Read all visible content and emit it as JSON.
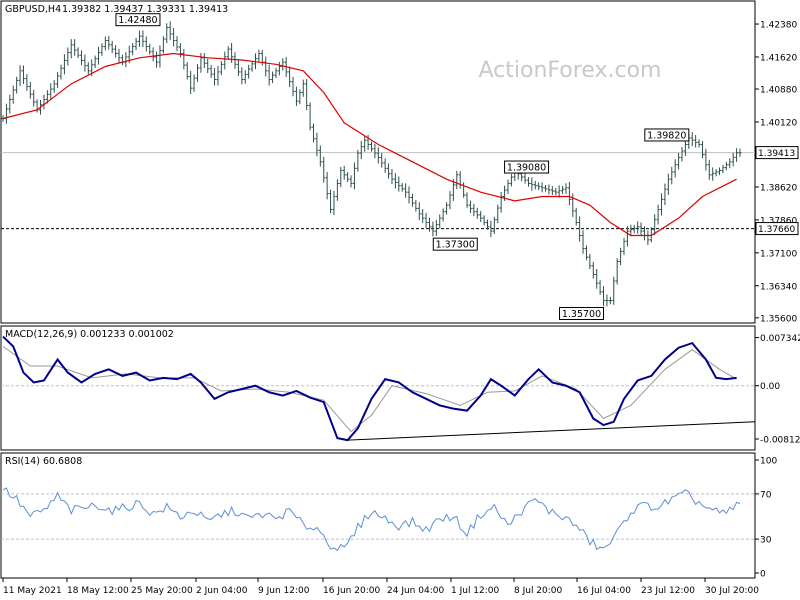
{
  "header": {
    "symbol_tf": "GBPUSD,H4",
    "ohlc": "1.39382 1.39437 1.39331 1.39413"
  },
  "watermark": "ActionForex.com",
  "colors": {
    "candle": "#2f4f4f",
    "ma": "#dd0000",
    "macd": "#00008b",
    "signal": "#999999",
    "rsi": "#5b8fd6",
    "grid": "#c0c0c0",
    "level": "#000000"
  },
  "chart_data": [
    {
      "type": "line",
      "title": "GBPUSD,H4",
      "x_labels": [
        "11 May 2021",
        "18 May 12:00",
        "25 May 20:00",
        "2 Jun 04:00",
        "9 Jun 12:00",
        "16 Jun 20:00",
        "24 Jun 04:00",
        "1 Jul 12:00",
        "8 Jul 20:00",
        "16 Jul 04:00",
        "23 Jul 12:00",
        "30 Jul 20:00"
      ],
      "y_ticks": [
        "1.42380",
        "1.41620",
        "1.40880",
        "1.40120",
        "1.38620",
        "1.37860",
        "1.37100",
        "1.36340",
        "1.35600"
      ],
      "ylim": [
        1.3555,
        1.4275
      ],
      "current_price": "1.39413",
      "current_value": 1.39413,
      "level_label": "1.37660",
      "level_value": 1.3766,
      "price_series": [
        {
          "x": 0,
          "y": 1.402
        },
        {
          "x": 5,
          "y": 1.413
        },
        {
          "x": 10,
          "y": 1.404
        },
        {
          "x": 15,
          "y": 1.41
        },
        {
          "x": 20,
          "y": 1.419
        },
        {
          "x": 25,
          "y": 1.413
        },
        {
          "x": 30,
          "y": 1.42
        },
        {
          "x": 35,
          "y": 1.415
        },
        {
          "x": 40,
          "y": 1.421
        },
        {
          "x": 45,
          "y": 1.415
        },
        {
          "x": 48,
          "y": 1.423
        },
        {
          "x": 52,
          "y": 1.417
        },
        {
          "x": 55,
          "y": 1.409
        },
        {
          "x": 58,
          "y": 1.416
        },
        {
          "x": 62,
          "y": 1.411
        },
        {
          "x": 66,
          "y": 1.418
        },
        {
          "x": 70,
          "y": 1.411
        },
        {
          "x": 75,
          "y": 1.417
        },
        {
          "x": 78,
          "y": 1.411
        },
        {
          "x": 82,
          "y": 1.415
        },
        {
          "x": 86,
          "y": 1.406
        },
        {
          "x": 88,
          "y": 1.41
        },
        {
          "x": 90,
          "y": 1.4
        },
        {
          "x": 93,
          "y": 1.392
        },
        {
          "x": 96,
          "y": 1.381
        },
        {
          "x": 99,
          "y": 1.39
        },
        {
          "x": 102,
          "y": 1.387
        },
        {
          "x": 104,
          "y": 1.394
        },
        {
          "x": 106,
          "y": 1.397
        },
        {
          "x": 110,
          "y": 1.393
        },
        {
          "x": 114,
          "y": 1.388
        },
        {
          "x": 118,
          "y": 1.385
        },
        {
          "x": 122,
          "y": 1.38
        },
        {
          "x": 126,
          "y": 1.376
        },
        {
          "x": 130,
          "y": 1.382
        },
        {
          "x": 133,
          "y": 1.389
        },
        {
          "x": 136,
          "y": 1.382
        },
        {
          "x": 140,
          "y": 1.379
        },
        {
          "x": 143,
          "y": 1.376
        },
        {
          "x": 146,
          "y": 1.384
        },
        {
          "x": 150,
          "y": 1.39
        },
        {
          "x": 154,
          "y": 1.387
        },
        {
          "x": 158,
          "y": 1.386
        },
        {
          "x": 162,
          "y": 1.385
        },
        {
          "x": 165,
          "y": 1.386
        },
        {
          "x": 168,
          "y": 1.378
        },
        {
          "x": 170,
          "y": 1.372
        },
        {
          "x": 173,
          "y": 1.366
        },
        {
          "x": 176,
          "y": 1.36
        },
        {
          "x": 178,
          "y": 1.36
        },
        {
          "x": 180,
          "y": 1.369
        },
        {
          "x": 183,
          "y": 1.376
        },
        {
          "x": 186,
          "y": 1.377
        },
        {
          "x": 189,
          "y": 1.374
        },
        {
          "x": 192,
          "y": 1.381
        },
        {
          "x": 195,
          "y": 1.388
        },
        {
          "x": 198,
          "y": 1.393
        },
        {
          "x": 201,
          "y": 1.3975
        },
        {
          "x": 204,
          "y": 1.396
        },
        {
          "x": 207,
          "y": 1.389
        },
        {
          "x": 210,
          "y": 1.39
        },
        {
          "x": 213,
          "y": 1.392
        },
        {
          "x": 215,
          "y": 1.3941
        }
      ],
      "ma_series": [
        {
          "x": 0,
          "y": 1.402
        },
        {
          "x": 10,
          "y": 1.404
        },
        {
          "x": 20,
          "y": 1.41
        },
        {
          "x": 30,
          "y": 1.414
        },
        {
          "x": 40,
          "y": 1.416
        },
        {
          "x": 50,
          "y": 1.417
        },
        {
          "x": 60,
          "y": 1.416
        },
        {
          "x": 70,
          "y": 1.4155
        },
        {
          "x": 80,
          "y": 1.4145
        },
        {
          "x": 88,
          "y": 1.413
        },
        {
          "x": 94,
          "y": 1.408
        },
        {
          "x": 100,
          "y": 1.401
        },
        {
          "x": 110,
          "y": 1.396
        },
        {
          "x": 120,
          "y": 1.392
        },
        {
          "x": 130,
          "y": 1.388
        },
        {
          "x": 140,
          "y": 1.385
        },
        {
          "x": 150,
          "y": 1.383
        },
        {
          "x": 158,
          "y": 1.384
        },
        {
          "x": 166,
          "y": 1.384
        },
        {
          "x": 172,
          "y": 1.382
        },
        {
          "x": 178,
          "y": 1.378
        },
        {
          "x": 184,
          "y": 1.375
        },
        {
          "x": 190,
          "y": 1.375
        },
        {
          "x": 198,
          "y": 1.379
        },
        {
          "x": 205,
          "y": 1.384
        },
        {
          "x": 215,
          "y": 1.388
        }
      ],
      "annotations": [
        {
          "label": "1.42480",
          "x": 46,
          "y": 1.4248,
          "side": "left"
        },
        {
          "label": "1.37300",
          "x": 139,
          "y": 1.373,
          "side": "left"
        },
        {
          "label": "1.39080",
          "x": 147,
          "y": 1.3908,
          "side": "right"
        },
        {
          "label": "1.35700",
          "x": 176,
          "y": 1.357,
          "side": "left"
        },
        {
          "label": "1.39820",
          "x": 201,
          "y": 1.3982,
          "side": "left"
        }
      ]
    },
    {
      "type": "line",
      "title": "MACD(12,26,9) 0.001233 0.001002",
      "y_ticks": [
        "0.007342",
        "0.00",
        "-0.008126"
      ],
      "ylim": [
        -0.0095,
        0.0085
      ],
      "macd": [
        {
          "x": 0,
          "y": 0.0075
        },
        {
          "x": 3,
          "y": 0.006
        },
        {
          "x": 6,
          "y": 0.002
        },
        {
          "x": 9,
          "y": 0.0005
        },
        {
          "x": 12,
          "y": 0.0008
        },
        {
          "x": 16,
          "y": 0.004
        },
        {
          "x": 19,
          "y": 0.002
        },
        {
          "x": 23,
          "y": 0.0005
        },
        {
          "x": 27,
          "y": 0.0018
        },
        {
          "x": 31,
          "y": 0.0025
        },
        {
          "x": 35,
          "y": 0.0015
        },
        {
          "x": 39,
          "y": 0.002
        },
        {
          "x": 43,
          "y": 0.0008
        },
        {
          "x": 47,
          "y": 0.0012
        },
        {
          "x": 51,
          "y": 0.001
        },
        {
          "x": 55,
          "y": 0.0018
        },
        {
          "x": 58,
          "y": 0.0005
        },
        {
          "x": 62,
          "y": -0.002
        },
        {
          "x": 66,
          "y": -0.001
        },
        {
          "x": 70,
          "y": -0.0005
        },
        {
          "x": 74,
          "y": 0.0
        },
        {
          "x": 78,
          "y": -0.001
        },
        {
          "x": 82,
          "y": -0.0015
        },
        {
          "x": 86,
          "y": -0.0008
        },
        {
          "x": 90,
          "y": -0.0018
        },
        {
          "x": 94,
          "y": -0.0025
        },
        {
          "x": 98,
          "y": -0.008
        },
        {
          "x": 101,
          "y": -0.0083
        },
        {
          "x": 104,
          "y": -0.0065
        },
        {
          "x": 108,
          "y": -0.002
        },
        {
          "x": 112,
          "y": 0.001
        },
        {
          "x": 116,
          "y": 0.0005
        },
        {
          "x": 120,
          "y": -0.001
        },
        {
          "x": 124,
          "y": -0.002
        },
        {
          "x": 128,
          "y": -0.003
        },
        {
          "x": 132,
          "y": -0.0035
        },
        {
          "x": 136,
          "y": -0.0038
        },
        {
          "x": 140,
          "y": -0.0015
        },
        {
          "x": 143,
          "y": 0.001
        },
        {
          "x": 146,
          "y": 0.0
        },
        {
          "x": 150,
          "y": -0.0015
        },
        {
          "x": 154,
          "y": 0.001
        },
        {
          "x": 157,
          "y": 0.0025
        },
        {
          "x": 161,
          "y": 0.0005
        },
        {
          "x": 165,
          "y": 0.0
        },
        {
          "x": 169,
          "y": -0.001
        },
        {
          "x": 173,
          "y": -0.005
        },
        {
          "x": 176,
          "y": -0.006
        },
        {
          "x": 179,
          "y": -0.0055
        },
        {
          "x": 182,
          "y": -0.002
        },
        {
          "x": 186,
          "y": 0.0008
        },
        {
          "x": 190,
          "y": 0.0015
        },
        {
          "x": 194,
          "y": 0.004
        },
        {
          "x": 198,
          "y": 0.0058
        },
        {
          "x": 202,
          "y": 0.0065
        },
        {
          "x": 206,
          "y": 0.004
        },
        {
          "x": 209,
          "y": 0.0012
        },
        {
          "x": 212,
          "y": 0.001
        },
        {
          "x": 215,
          "y": 0.0012
        }
      ],
      "signal": [
        {
          "x": 0,
          "y": 0.006
        },
        {
          "x": 8,
          "y": 0.003
        },
        {
          "x": 16,
          "y": 0.003
        },
        {
          "x": 26,
          "y": 0.0012
        },
        {
          "x": 36,
          "y": 0.0018
        },
        {
          "x": 46,
          "y": 0.0012
        },
        {
          "x": 56,
          "y": 0.0012
        },
        {
          "x": 64,
          "y": -0.0008
        },
        {
          "x": 74,
          "y": -0.0005
        },
        {
          "x": 84,
          "y": -0.001
        },
        {
          "x": 94,
          "y": -0.0022
        },
        {
          "x": 102,
          "y": -0.007
        },
        {
          "x": 108,
          "y": -0.0045
        },
        {
          "x": 114,
          "y": 0.0
        },
        {
          "x": 124,
          "y": -0.0012
        },
        {
          "x": 134,
          "y": -0.003
        },
        {
          "x": 142,
          "y": -0.001
        },
        {
          "x": 150,
          "y": -0.0008
        },
        {
          "x": 158,
          "y": 0.0015
        },
        {
          "x": 168,
          "y": -0.0005
        },
        {
          "x": 176,
          "y": -0.005
        },
        {
          "x": 184,
          "y": -0.003
        },
        {
          "x": 194,
          "y": 0.0025
        },
        {
          "x": 202,
          "y": 0.0055
        },
        {
          "x": 210,
          "y": 0.0025
        },
        {
          "x": 215,
          "y": 0.001
        }
      ],
      "trendline": [
        {
          "x": 101,
          "y": -0.0083
        },
        {
          "x": 220,
          "y": -0.0055
        }
      ]
    },
    {
      "type": "line",
      "title": "RSI(14) 60.6808",
      "y_ticks": [
        "100",
        "70",
        "30",
        "0"
      ],
      "ylim": [
        0,
        100
      ],
      "levels": [
        70,
        30
      ],
      "rsi": [
        {
          "x": 0,
          "y": 75
        },
        {
          "x": 4,
          "y": 65
        },
        {
          "x": 8,
          "y": 50
        },
        {
          "x": 12,
          "y": 55
        },
        {
          "x": 16,
          "y": 68
        },
        {
          "x": 20,
          "y": 55
        },
        {
          "x": 24,
          "y": 58
        },
        {
          "x": 28,
          "y": 60
        },
        {
          "x": 32,
          "y": 55
        },
        {
          "x": 36,
          "y": 58
        },
        {
          "x": 40,
          "y": 62
        },
        {
          "x": 44,
          "y": 52
        },
        {
          "x": 48,
          "y": 58
        },
        {
          "x": 52,
          "y": 50
        },
        {
          "x": 56,
          "y": 55
        },
        {
          "x": 60,
          "y": 45
        },
        {
          "x": 64,
          "y": 52
        },
        {
          "x": 68,
          "y": 55
        },
        {
          "x": 72,
          "y": 48
        },
        {
          "x": 76,
          "y": 52
        },
        {
          "x": 80,
          "y": 48
        },
        {
          "x": 84,
          "y": 55
        },
        {
          "x": 88,
          "y": 42
        },
        {
          "x": 92,
          "y": 40
        },
        {
          "x": 96,
          "y": 25
        },
        {
          "x": 100,
          "y": 20
        },
        {
          "x": 104,
          "y": 40
        },
        {
          "x": 108,
          "y": 55
        },
        {
          "x": 112,
          "y": 48
        },
        {
          "x": 116,
          "y": 42
        },
        {
          "x": 120,
          "y": 45
        },
        {
          "x": 124,
          "y": 38
        },
        {
          "x": 128,
          "y": 48
        },
        {
          "x": 132,
          "y": 50
        },
        {
          "x": 136,
          "y": 35
        },
        {
          "x": 140,
          "y": 52
        },
        {
          "x": 144,
          "y": 58
        },
        {
          "x": 148,
          "y": 42
        },
        {
          "x": 152,
          "y": 55
        },
        {
          "x": 156,
          "y": 65
        },
        {
          "x": 160,
          "y": 55
        },
        {
          "x": 164,
          "y": 50
        },
        {
          "x": 168,
          "y": 42
        },
        {
          "x": 172,
          "y": 28
        },
        {
          "x": 176,
          "y": 20
        },
        {
          "x": 180,
          "y": 35
        },
        {
          "x": 184,
          "y": 55
        },
        {
          "x": 188,
          "y": 60
        },
        {
          "x": 192,
          "y": 58
        },
        {
          "x": 196,
          "y": 65
        },
        {
          "x": 200,
          "y": 70
        },
        {
          "x": 204,
          "y": 62
        },
        {
          "x": 208,
          "y": 55
        },
        {
          "x": 212,
          "y": 52
        },
        {
          "x": 215,
          "y": 60.7
        }
      ]
    }
  ]
}
